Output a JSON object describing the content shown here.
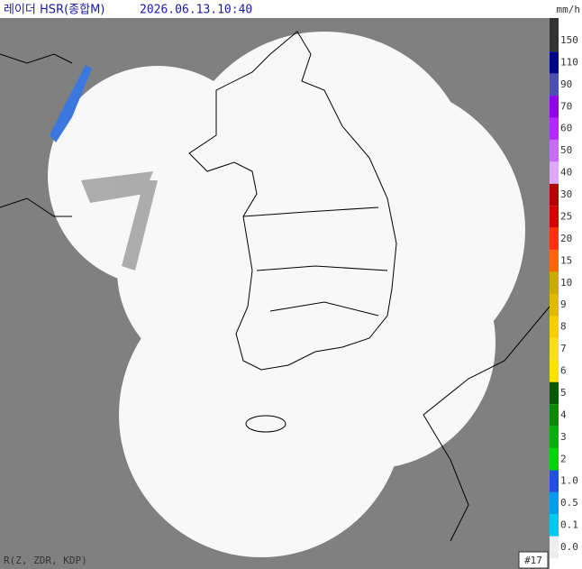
{
  "header": {
    "title": "레이더 HSR(종합M)",
    "timestamp": "2026.06.13.10:40",
    "unit": "mm/h"
  },
  "legend": {
    "items": [
      {
        "label": "150",
        "color": "#333333"
      },
      {
        "label": "110",
        "color": "#000390"
      },
      {
        "label": "90",
        "color": "#4c4eb1"
      },
      {
        "label": "70",
        "color": "#9300e4"
      },
      {
        "label": "60",
        "color": "#b329ff"
      },
      {
        "label": "50",
        "color": "#c969ff"
      },
      {
        "label": "40",
        "color": "#e0a9ff"
      },
      {
        "label": "30",
        "color": "#b40000"
      },
      {
        "label": "25",
        "color": "#d20000"
      },
      {
        "label": "20",
        "color": "#ff3200"
      },
      {
        "label": "15",
        "color": "#ff6600"
      },
      {
        "label": "10",
        "color": "#ccaa00"
      },
      {
        "label": "9",
        "color": "#e0b900"
      },
      {
        "label": "8",
        "color": "#f9cd00"
      },
      {
        "label": "7",
        "color": "#ffdc1f"
      },
      {
        "label": "6",
        "color": "#ffe100"
      },
      {
        "label": "5",
        "color": "#005a00"
      },
      {
        "label": "4",
        "color": "#008c00"
      },
      {
        "label": "3",
        "color": "#00b300"
      },
      {
        "label": "2",
        "color": "#00d500"
      },
      {
        "label": "1.0",
        "color": "#1f50e0"
      },
      {
        "label": "0.5",
        "color": "#009bf5"
      },
      {
        "label": "0.1",
        "color": "#00c8ff"
      },
      {
        "label": "0.0",
        "color": "#eeeeee"
      }
    ]
  },
  "footer": {
    "method": "R(Z, ZDR, KDP)",
    "site_count": "#17"
  }
}
